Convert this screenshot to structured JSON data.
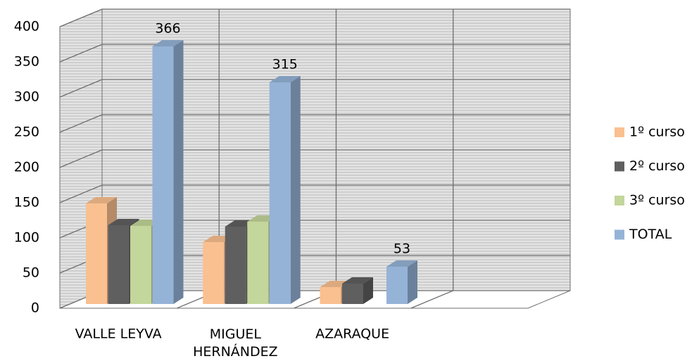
{
  "chart_data": {
    "type": "bar3d",
    "categories": [
      "VALLE LEYVA",
      "MIGUEL HERNÁNDEZ",
      "AZARAQUE",
      null
    ],
    "series": [
      {
        "name": "1º curso",
        "color": "#fac090",
        "values": [
          143,
          88,
          24,
          null
        ]
      },
      {
        "name": "2º curso",
        "color": "#5f5f5f",
        "values": [
          112,
          110,
          29,
          null
        ]
      },
      {
        "name": "3º curso",
        "color": "#c3d69b",
        "values": [
          111,
          117,
          null,
          null
        ]
      },
      {
        "name": "TOTAL",
        "color": "#95b3d7",
        "values": [
          366,
          315,
          53,
          null
        ],
        "show_values": true
      }
    ],
    "ylim": [
      0,
      400
    ],
    "yticks": [
      0,
      50,
      100,
      150,
      200,
      250,
      300,
      350,
      400
    ],
    "grid": true,
    "legend": "right"
  }
}
